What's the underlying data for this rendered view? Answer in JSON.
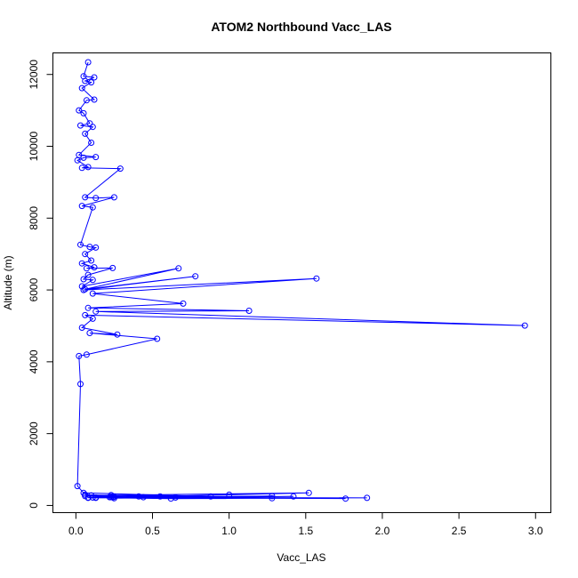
{
  "chart_data": {
    "type": "line",
    "title": "ATOM2 Northbound Vacc_LAS",
    "xlabel": "Vacc_LAS",
    "ylabel": "Altitude (m)",
    "xlim": [
      -0.15,
      3.1
    ],
    "ylim": [
      -200,
      12600
    ],
    "x_ticks": [
      0.0,
      0.5,
      1.0,
      1.5,
      2.0,
      2.5,
      3.0
    ],
    "x_tick_labels": [
      "0.0",
      "0.5",
      "1.0",
      "1.5",
      "2.0",
      "2.5",
      "3.0"
    ],
    "y_ticks": [
      0,
      2000,
      4000,
      6000,
      8000,
      10000,
      12000
    ],
    "y_tick_labels": [
      "0",
      "2000",
      "4000",
      "6000",
      "8000",
      "10000",
      "12000"
    ],
    "grid": false,
    "markers": "open-circle",
    "color": "#0000ff",
    "series": [
      {
        "x": [
          0.08,
          0.05,
          0.12,
          0.06,
          0.1,
          0.04,
          0.12,
          0.07,
          0.02,
          0.05,
          0.09,
          0.03,
          0.11,
          0.06,
          0.1,
          0.02,
          0.13,
          0.05,
          0.01,
          0.08,
          0.04,
          0.29,
          0.06,
          0.13,
          0.25,
          0.04,
          0.11,
          0.03,
          0.09,
          0.13,
          0.06,
          0.1,
          0.04,
          0.12,
          0.07,
          0.24,
          0.08,
          0.05,
          0.11,
          0.04,
          0.67,
          0.06,
          0.78,
          0.05,
          1.57,
          0.11,
          0.7,
          0.08,
          1.13,
          0.13,
          2.93,
          0.06,
          0.11,
          0.04,
          0.27,
          0.09,
          0.53,
          0.07,
          0.02,
          0.03,
          0.01,
          0.05,
          0.88,
          0.23,
          0.44,
          0.06,
          0.25,
          0.08,
          0.62,
          1.28,
          0.1,
          1.52,
          0.13,
          1.42,
          0.23,
          1.76,
          0.11,
          1.28,
          0.24,
          1.9,
          0.13,
          0.22,
          0.41,
          0.06,
          0.65,
          0.25,
          1.0,
          0.08,
          0.55,
          0.24
        ],
        "y": [
          12340,
          11950,
          11920,
          11820,
          11780,
          11620,
          11300,
          11280,
          11000,
          10920,
          10640,
          10580,
          10540,
          10350,
          10100,
          9760,
          9700,
          9680,
          9610,
          9420,
          9400,
          9380,
          8580,
          8560,
          8580,
          8340,
          8300,
          7260,
          7200,
          7180,
          7000,
          6820,
          6740,
          6630,
          6600,
          6610,
          6420,
          6300,
          6280,
          6100,
          6600,
          6020,
          6380,
          6000,
          6320,
          5900,
          5620,
          5500,
          5420,
          5400,
          5010,
          5300,
          5200,
          4950,
          4760,
          4800,
          4640,
          4200,
          4160,
          3380,
          540,
          350,
          250,
          290,
          230,
          260,
          240,
          220,
          190,
          200,
          280,
          350,
          210,
          250,
          230,
          190,
          220,
          260,
          230,
          210,
          220,
          230,
          250,
          300,
          220,
          200,
          300,
          210,
          250,
          230
        ]
      }
    ]
  }
}
